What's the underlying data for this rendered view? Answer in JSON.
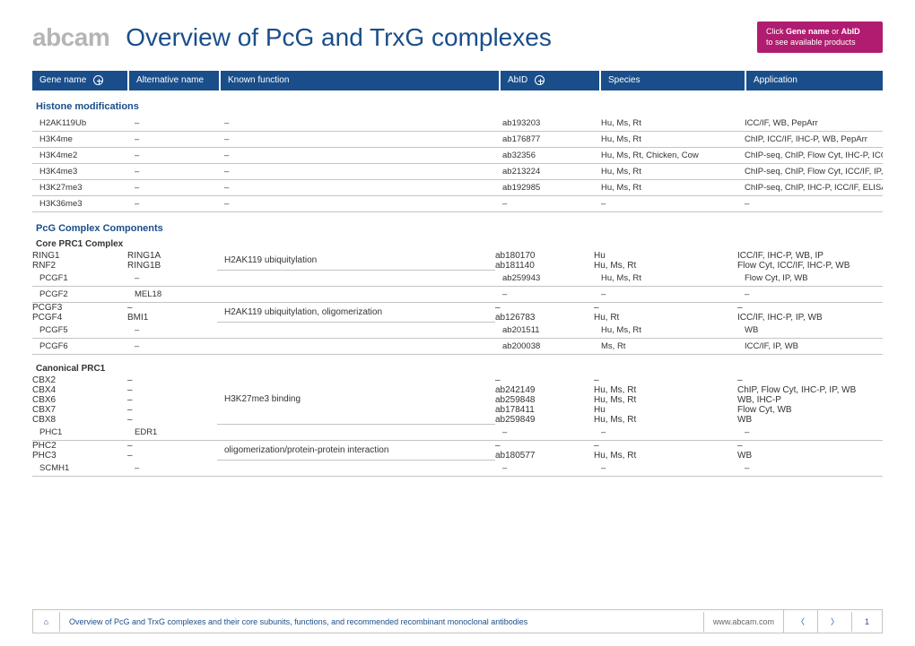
{
  "logo": "abcam",
  "title": "Overview of PcG and TrxG complexes",
  "cta": {
    "l1": "Click",
    "gene": "Gene name",
    "or": "or",
    "abid": "AbID",
    "l2": "to see available products"
  },
  "cols": {
    "gene": "Gene name",
    "alt": "Alternative name",
    "func": "Known function",
    "abid": "AbID",
    "spec": "Species",
    "app": "Application"
  },
  "sect1": {
    "title": "Histone modifications",
    "rows": [
      {
        "gene": "H2AK119Ub",
        "alt": "–",
        "func": "–",
        "abid": "ab193203",
        "spec": "Hu, Ms, Rt",
        "app": "ICC/IF, WB, PepArr"
      },
      {
        "gene": "H3K4me",
        "alt": "–",
        "func": "–",
        "abid": "ab176877",
        "spec": "Hu, Ms, Rt",
        "app": "ChIP, ICC/IF, IHC-P, WB, PepArr"
      },
      {
        "gene": "H3K4me2",
        "alt": "–",
        "func": "–",
        "abid": "ab32356",
        "spec": "Hu, Ms, Rt, Chicken, Cow",
        "app": "ChIP-seq, ChIP, Flow Cyt, IHC-P, ICC/IF, IP, WB"
      },
      {
        "gene": "H3K4me3",
        "alt": "–",
        "func": "–",
        "abid": "ab213224",
        "spec": "Hu, Ms, Rt",
        "app": "ChIP-seq, ChIP, Flow Cyt, ICC/IF, IP, WB, Dot blot, PepArr"
      },
      {
        "gene": "H3K27me3",
        "alt": "–",
        "func": "–",
        "abid": "ab192985",
        "spec": "Hu, Ms, Rt",
        "app": "ChIP-seq, ChIP, IHC-P, ICC/IF, ELISA, WB, PepArr"
      },
      {
        "gene": "H3K36me3",
        "alt": "–",
        "func": "–",
        "abid": "–",
        "spec": "–",
        "app": "–"
      }
    ]
  },
  "sect2": {
    "title": "PcG Complex Components",
    "sub1": {
      "title": "Core PRC1 Complex",
      "g1": {
        "func": "H2AK119 ubiquitylation",
        "pairs": [
          {
            "gene": "RING1",
            "alt": "RING1A",
            "abid": "ab180170",
            "spec": "Hu",
            "app": "ICC/IF, IHC-P, WB, IP"
          },
          {
            "gene": "RNF2",
            "alt": "RING1B",
            "abid": "ab181140",
            "spec": "Hu, Ms, Rt",
            "app": "Flow Cyt, ICC/IF, IHC-P, WB"
          }
        ]
      },
      "r1": {
        "gene": "PCGF1",
        "alt": "–",
        "abid": "ab259943",
        "spec": "Hu, Ms, Rt",
        "app": "Flow Cyt, IP, WB"
      },
      "r2": {
        "gene": "PCGF2",
        "alt": "MEL18",
        "abid": "–",
        "spec": "–",
        "app": "–"
      },
      "g2": {
        "func": "H2AK119 ubiquitylation, oligomerization",
        "pairs": [
          {
            "gene": "PCGF3",
            "alt": "–",
            "abid": "–",
            "spec": "–",
            "app": "–"
          },
          {
            "gene": "PCGF4",
            "alt": "BMI1",
            "abid": "ab126783",
            "spec": "Hu, Rt",
            "app": "ICC/IF, IHC-P, IP, WB"
          }
        ]
      },
      "r3": {
        "gene": "PCGF5",
        "alt": "–",
        "abid": "ab201511",
        "spec": "Hu, Ms, Rt",
        "app": "WB"
      },
      "r4": {
        "gene": "PCGF6",
        "alt": "–",
        "abid": "ab200038",
        "spec": "Ms, Rt",
        "app": "ICC/IF, IP, WB"
      }
    },
    "sub2": {
      "title": "Canonical PRC1",
      "g1": {
        "func": "H3K27me3 binding",
        "pairs": [
          {
            "gene": "CBX2",
            "alt": "–",
            "abid": "–",
            "spec": "–",
            "app": "–"
          },
          {
            "gene": "CBX4",
            "alt": "–",
            "abid": "ab242149",
            "spec": "Hu, Ms, Rt",
            "app": "ChIP, Flow Cyt, IHC-P, IP, WB"
          },
          {
            "gene": "CBX6",
            "alt": "–",
            "abid": "ab259848",
            "spec": "Hu, Ms, Rt",
            "app": "WB, IHC-P"
          },
          {
            "gene": "CBX7",
            "alt": "–",
            "abid": "ab178411",
            "spec": "Hu",
            "app": "Flow Cyt, WB"
          },
          {
            "gene": "CBX8",
            "alt": "–",
            "abid": "ab259849",
            "spec": "Hu, Ms, Rt",
            "app": "WB"
          }
        ]
      },
      "r1": {
        "gene": "PHC1",
        "alt": "EDR1",
        "abid": "–",
        "spec": "–",
        "app": "–"
      },
      "g2": {
        "func": "oligomerization/protein-protein interaction",
        "pairs": [
          {
            "gene": "PHC2",
            "alt": "–",
            "abid": "–",
            "spec": "–",
            "app": "–"
          },
          {
            "gene": "PHC3",
            "alt": "–",
            "abid": "ab180577",
            "spec": "Hu, Ms, Rt",
            "app": "WB"
          }
        ]
      },
      "r2": {
        "gene": "SCMH1",
        "alt": "–",
        "abid": "–",
        "spec": "–",
        "app": "–"
      }
    }
  },
  "footer": {
    "desc": "Overview of PcG and TrxG complexes and their core subunits, functions, and recommended recombinant monoclonal antibodies",
    "url": "www.abcam.com",
    "page": "1"
  }
}
